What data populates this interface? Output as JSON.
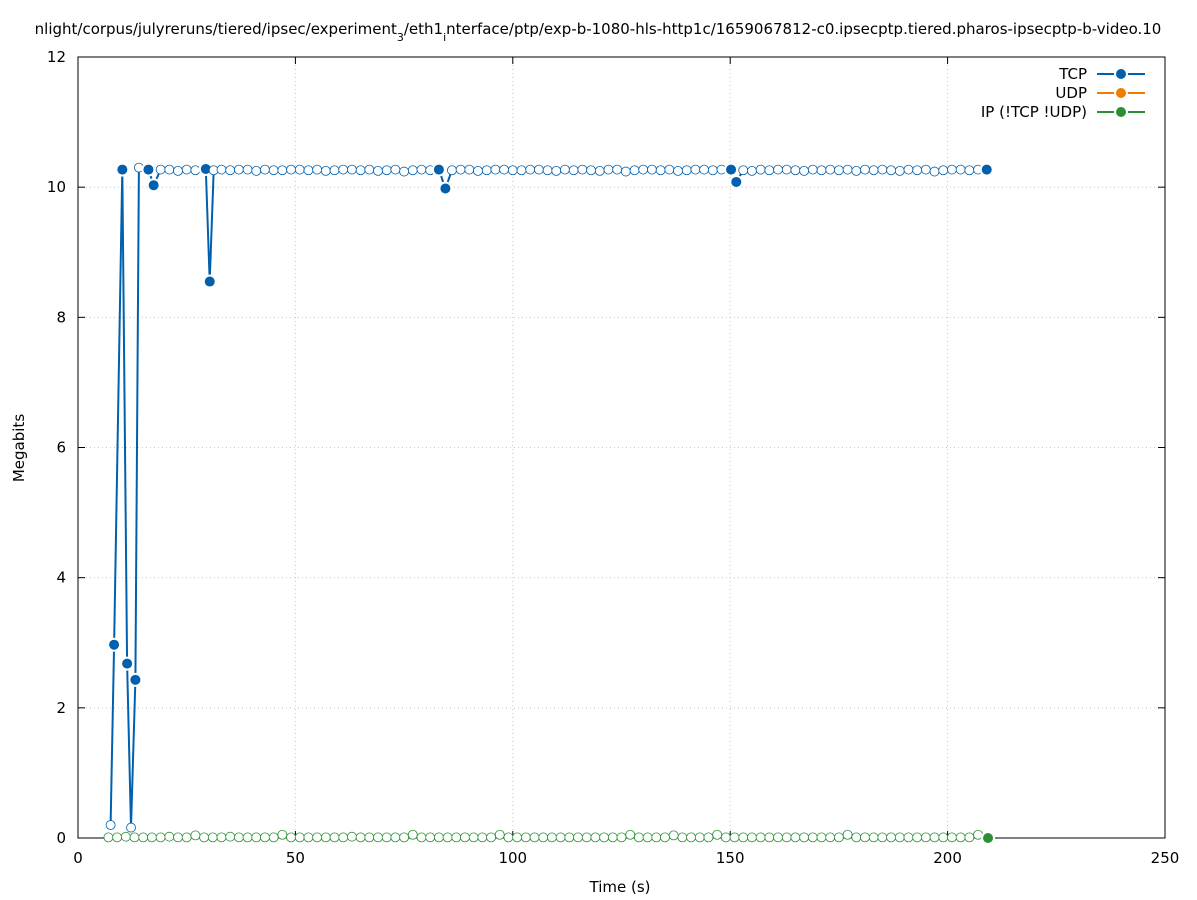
{
  "chart_data": {
    "type": "line",
    "title_prefix": "nlight/corpus/julyreruns/tiered/ipsec/experiment",
    "title_sub1": "3",
    "title_mid": "/eth1",
    "title_sub2": "i",
    "title_suffix": "nterface/ptp/exp-b-1080-hls-http1c/1659067812-c0.ipsecptp.tiered.pharos-ipsecptp-b-video.10",
    "xlabel": "Time (s)",
    "ylabel": "Megabits",
    "xlim": [
      0,
      250
    ],
    "ylim": [
      0,
      12
    ],
    "xticks": [
      "0",
      "50",
      "100",
      "150",
      "200",
      "250"
    ],
    "yticks": [
      "0",
      "2",
      "4",
      "6",
      "8",
      "10",
      "12"
    ],
    "grid": true,
    "legend_position": "top-right",
    "series": [
      {
        "name": "TCP",
        "color": "#0060ad",
        "x": [
          7.5,
          8.3,
          10.2,
          11.3,
          12.2,
          13.2,
          14.0,
          16.2,
          17.4,
          19,
          21,
          23,
          25,
          27,
          29.4,
          30.3,
          31.2,
          33,
          35,
          37,
          39,
          41,
          43,
          45,
          47,
          49,
          51,
          53,
          55,
          57,
          59,
          61,
          63,
          65,
          67,
          69,
          71,
          73,
          75,
          77,
          79,
          81,
          83.0,
          84.5,
          86,
          88,
          90,
          92,
          94,
          96,
          98,
          100,
          102,
          104,
          106,
          108,
          110,
          112,
          114,
          116,
          118,
          120,
          122,
          124,
          126,
          128,
          130,
          132,
          134,
          136,
          138,
          140,
          142,
          144,
          146,
          148,
          150.2,
          151.4,
          153,
          155,
          157,
          159,
          161,
          163,
          165,
          167,
          169,
          171,
          173,
          175,
          177,
          179,
          181,
          183,
          185,
          187,
          189,
          191,
          193,
          195,
          197,
          199,
          201,
          203,
          205,
          207,
          209.0
        ],
        "y": [
          0.2,
          2.97,
          10.27,
          2.68,
          0.16,
          2.43,
          10.3,
          10.27,
          10.03,
          10.27,
          10.27,
          10.25,
          10.27,
          10.26,
          10.28,
          8.55,
          10.26,
          10.27,
          10.26,
          10.27,
          10.27,
          10.25,
          10.27,
          10.26,
          10.26,
          10.27,
          10.27,
          10.26,
          10.27,
          10.25,
          10.26,
          10.27,
          10.27,
          10.26,
          10.27,
          10.25,
          10.26,
          10.27,
          10.24,
          10.26,
          10.27,
          10.26,
          10.27,
          9.98,
          10.26,
          10.27,
          10.27,
          10.25,
          10.26,
          10.27,
          10.27,
          10.26,
          10.26,
          10.27,
          10.27,
          10.26,
          10.25,
          10.27,
          10.26,
          10.27,
          10.26,
          10.25,
          10.27,
          10.27,
          10.24,
          10.26,
          10.27,
          10.27,
          10.26,
          10.27,
          10.25,
          10.26,
          10.27,
          10.27,
          10.26,
          10.27,
          10.27,
          10.08,
          10.26,
          10.25,
          10.27,
          10.26,
          10.27,
          10.27,
          10.26,
          10.25,
          10.27,
          10.26,
          10.27,
          10.26,
          10.27,
          10.25,
          10.27,
          10.26,
          10.27,
          10.26,
          10.25,
          10.27,
          10.26,
          10.27,
          10.24,
          10.26,
          10.27,
          10.27,
          10.26,
          10.27,
          10.27
        ],
        "highlight": [
          1,
          2,
          3,
          5,
          7,
          8,
          14,
          15,
          42,
          43,
          76,
          77,
          106
        ]
      },
      {
        "name": "UDP",
        "color": "#ef7d00",
        "x": [],
        "y": []
      },
      {
        "name": "IP (!TCP  !UDP)",
        "color": "#2a9033",
        "x": [
          7,
          9,
          11,
          13,
          15,
          17,
          19,
          21,
          23,
          25,
          27,
          29,
          31,
          33,
          35,
          37,
          39,
          41,
          43,
          45,
          47,
          49,
          51,
          53,
          55,
          57,
          59,
          61,
          63,
          65,
          67,
          69,
          71,
          73,
          75,
          77,
          79,
          81,
          83,
          85,
          87,
          89,
          91,
          93,
          95,
          97,
          99,
          101,
          103,
          105,
          107,
          109,
          111,
          113,
          115,
          117,
          119,
          121,
          123,
          125,
          127,
          129,
          131,
          133,
          135,
          137,
          139,
          141,
          143,
          145,
          147,
          149,
          151,
          153,
          155,
          157,
          159,
          161,
          163,
          165,
          167,
          169,
          171,
          173,
          175,
          177,
          179,
          181,
          183,
          185,
          187,
          189,
          191,
          193,
          195,
          197,
          199,
          201,
          203,
          205,
          207,
          209.3
        ],
        "y": [
          0.01,
          0.01,
          0.02,
          0.01,
          0.01,
          0.01,
          0.01,
          0.02,
          0.01,
          0.01,
          0.04,
          0.01,
          0.01,
          0.01,
          0.02,
          0.01,
          0.01,
          0.01,
          0.01,
          0.01,
          0.05,
          0.01,
          0.01,
          0.01,
          0.01,
          0.01,
          0.01,
          0.01,
          0.02,
          0.01,
          0.01,
          0.01,
          0.01,
          0.01,
          0.01,
          0.05,
          0.01,
          0.01,
          0.01,
          0.01,
          0.01,
          0.01,
          0.01,
          0.01,
          0.01,
          0.05,
          0.01,
          0.01,
          0.01,
          0.01,
          0.01,
          0.01,
          0.01,
          0.01,
          0.01,
          0.01,
          0.01,
          0.01,
          0.01,
          0.01,
          0.05,
          0.01,
          0.01,
          0.01,
          0.01,
          0.04,
          0.01,
          0.01,
          0.01,
          0.01,
          0.05,
          0.01,
          0.01,
          0.01,
          0.01,
          0.01,
          0.01,
          0.01,
          0.01,
          0.01,
          0.01,
          0.01,
          0.01,
          0.01,
          0.01,
          0.05,
          0.01,
          0.01,
          0.01,
          0.01,
          0.01,
          0.01,
          0.01,
          0.01,
          0.01,
          0.01,
          0.01,
          0.01,
          0.01,
          0.01,
          0.05,
          0.0
        ],
        "highlight": [
          101
        ]
      }
    ]
  }
}
